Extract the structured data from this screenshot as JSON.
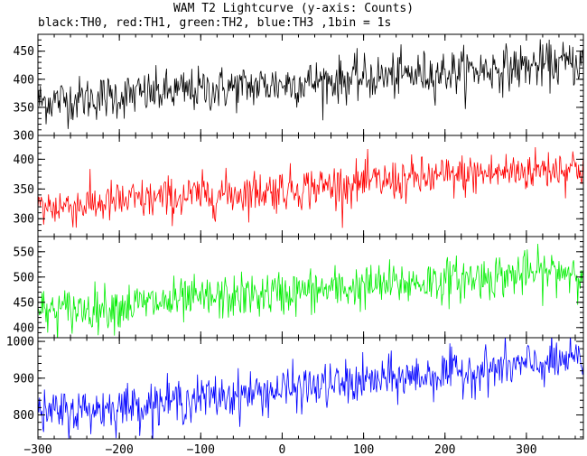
{
  "header": {
    "title": "WAM T2 Lightcurve (y-axis: Counts)",
    "subtitle": "black:TH0, red:TH1, green:TH2, blue:TH3 ,1bin = 1s"
  },
  "chart_data": {
    "type": "line",
    "title": "WAM T2 Lightcurve (y-axis: Counts)",
    "subtitle": "black:TH0, red:TH1, green:TH2, blue:TH3 ,1bin = 1s",
    "xlabel": "",
    "ylabel": "",
    "x_range": [
      -300,
      370
    ],
    "x_ticks": [
      -300,
      -200,
      -100,
      0,
      100,
      200,
      300
    ],
    "bin_seconds": 1,
    "grid": false,
    "panels": [
      {
        "series": "TH0",
        "color": "#000000",
        "ylim": [
          300,
          480
        ],
        "y_ticks": [
          350,
          400,
          450
        ],
        "extra_tick_label": "300",
        "trend_start": 360,
        "trend_end": 430,
        "noise_sd": 20
      },
      {
        "series": "TH1",
        "color": "#ff0000",
        "ylim": [
          270,
          440
        ],
        "y_ticks": [
          300,
          350,
          400
        ],
        "trend_start": 318,
        "trend_end": 388,
        "noise_sd": 18
      },
      {
        "series": "TH2",
        "color": "#00ee00",
        "ylim": [
          380,
          580
        ],
        "y_ticks": [
          400,
          450,
          500,
          550
        ],
        "trend_start": 430,
        "trend_end": 515,
        "noise_sd": 22
      },
      {
        "series": "TH3",
        "color": "#0000ff",
        "ylim": [
          735,
          1010
        ],
        "y_ticks": [
          800,
          900,
          1000
        ],
        "trend_start": 800,
        "trend_end": 950,
        "noise_sd": 30
      }
    ]
  }
}
